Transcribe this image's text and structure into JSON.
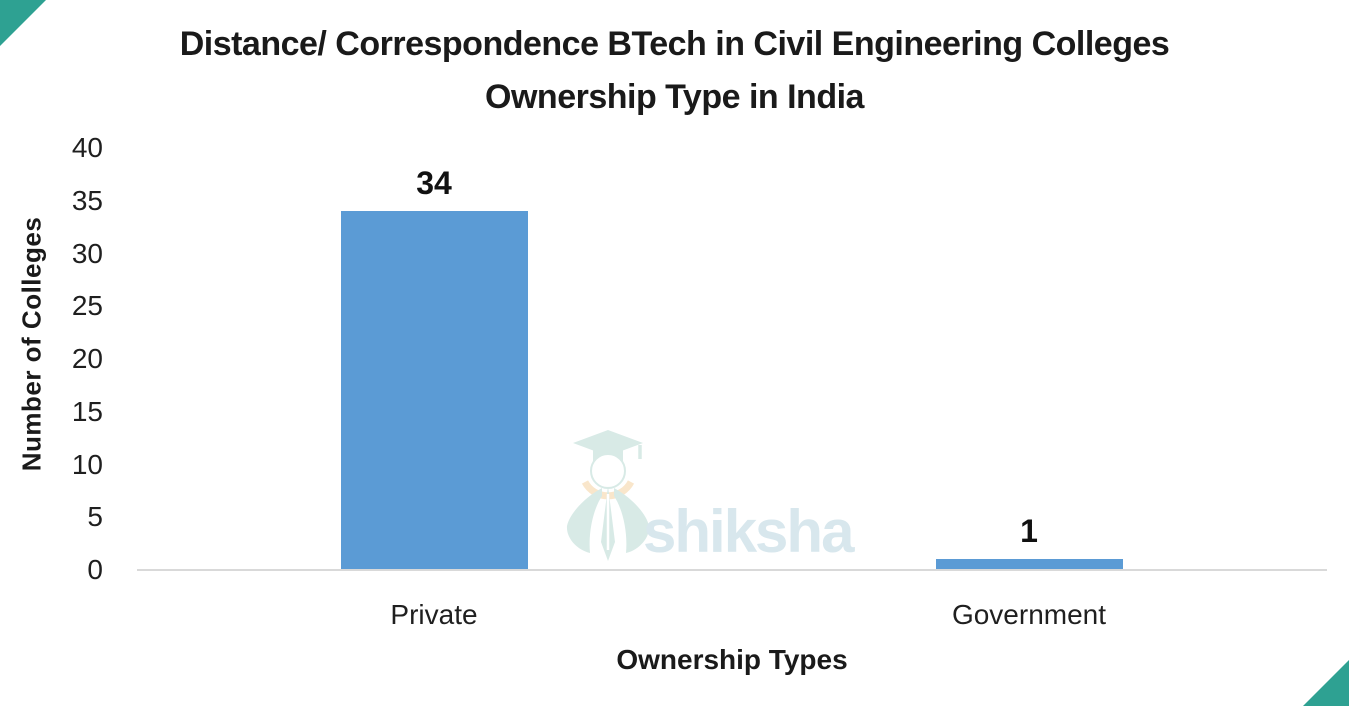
{
  "title": {
    "line1": "Distance/ Correspondence BTech in Civil Engineering Colleges",
    "line2": "Ownership Type in India"
  },
  "chart_data": {
    "type": "bar",
    "categories": [
      "Private",
      "Government"
    ],
    "values": [
      34,
      1
    ],
    "title": "Distance/ Correspondence BTech in Civil Engineering Colleges Ownership Type in India",
    "xlabel": "Ownership Types",
    "ylabel": "Number of Colleges",
    "ylim": [
      0,
      40
    ],
    "yticks": [
      40,
      35,
      30,
      25,
      20,
      15,
      10,
      5,
      0
    ],
    "grid": false,
    "legend": false,
    "bar_color": "#5B9BD5",
    "axis_line_color": "#D9D9D9"
  },
  "watermark": {
    "text": "shiksha",
    "text_color": "#D4E5EC",
    "icon": "shiksha-graduation-cap-bird-logo",
    "icon_teal": "#D4E8E4",
    "icon_peach": "#F9E4C6"
  },
  "decor": {
    "corner_color": "#2EA192"
  }
}
